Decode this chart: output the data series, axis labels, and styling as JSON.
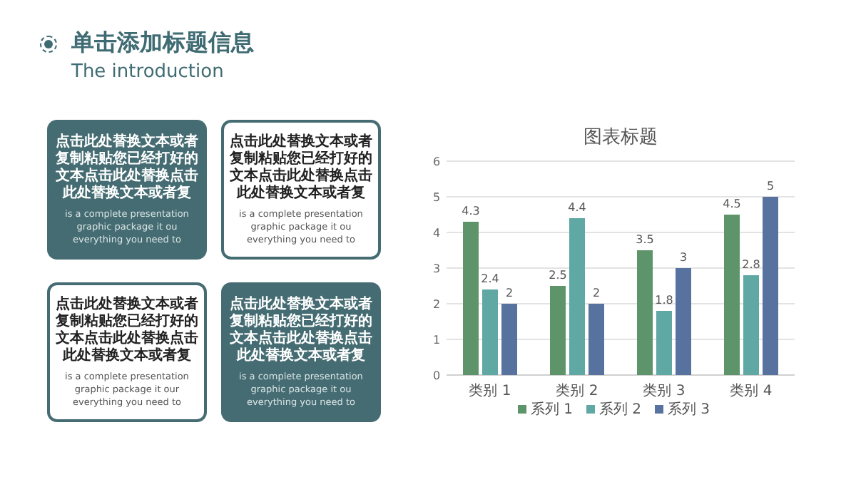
{
  "chart_data": [
    {
      "type": "other",
      "title": "单击添加标题信息",
      "subtitle": "The introduction",
      "annotations": [
        "点击此处替换文本或者复制粘贴您已经打好的文本点击此处替换点击此处替换文本或者复",
        "is a complete presentation graphic package it ou everything you need to",
        "点击此处替换文本或者复制粘贴您已经打好的文本点击此处替换点击此处替换文本或者复",
        "is a complete presentation graphic package it ou everything you need to",
        "点击此处替换文本或者复制粘贴您已经打好的文本点击此处替换点击此处替换文本或者复",
        "is a complete presentation graphic package it our everything you need to",
        "点击此处替换文本或者复制粘贴您已经打好的文本点击此处替换点击此处替换文本或者复",
        "is a complete presentation graphic package it ou everything you need to"
      ]
    },
    {
      "type": "bar",
      "title": "图表标题",
      "categories": [
        "类别 1",
        "类别 2",
        "类别 3",
        "类别 4"
      ],
      "series": [
        {
          "name": "系列 1",
          "color": "#5d9469",
          "values": [
            4.3,
            2.5,
            3.5,
            4.5
          ]
        },
        {
          "name": "系列 2",
          "color": "#5fa8a3",
          "values": [
            2.4,
            4.4,
            1.8,
            2.8
          ]
        },
        {
          "name": "系列 3",
          "color": "#5872a0",
          "values": [
            2,
            2,
            3,
            5
          ]
        }
      ],
      "ylim": [
        0,
        6
      ],
      "yticks": [
        0,
        1,
        2,
        3,
        4,
        5,
        6
      ],
      "grid": "y",
      "legend": "bottom",
      "data_labels": true
    }
  ]
}
